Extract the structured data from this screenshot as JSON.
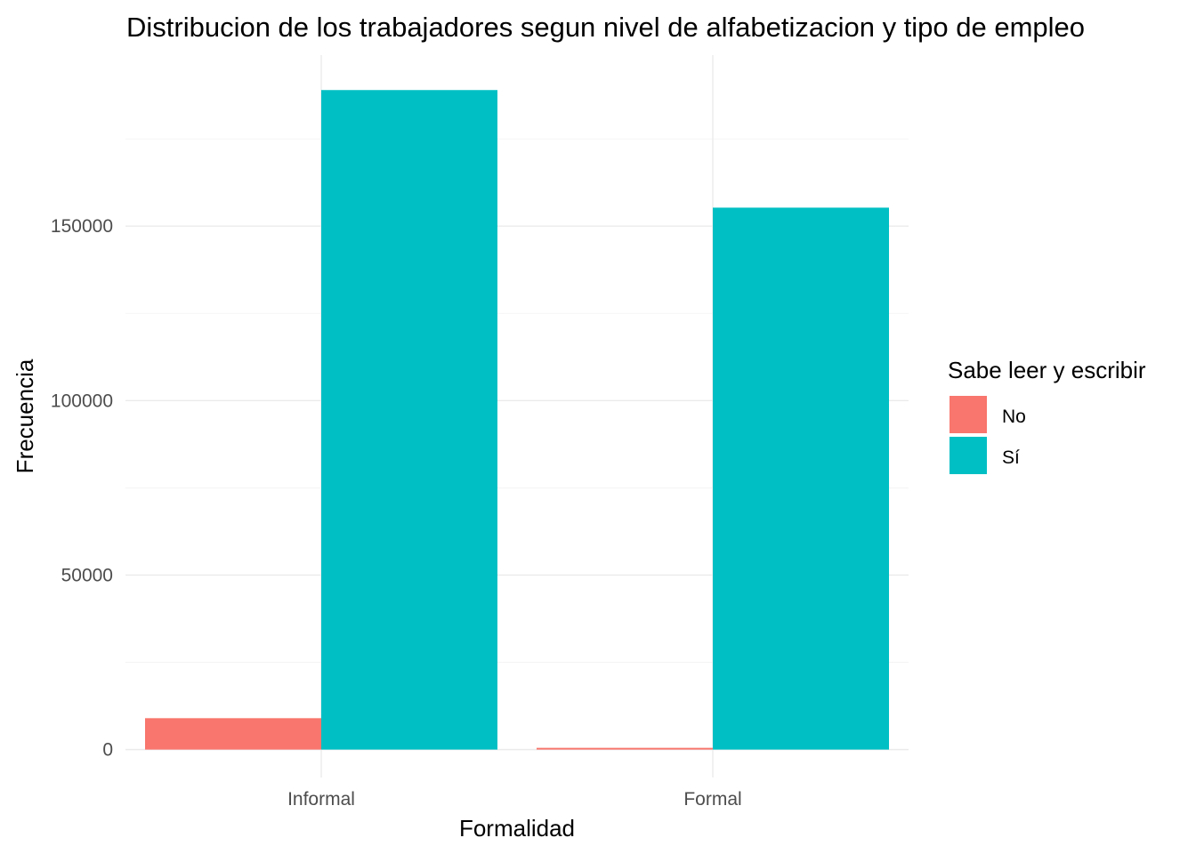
{
  "chart_data": {
    "type": "bar",
    "title": "Distribucion de los trabajadores segun nivel de alfabetizacion y tipo de empleo",
    "xlabel": "Formalidad",
    "ylabel": "Frecuencia",
    "categories": [
      "Informal",
      "Formal"
    ],
    "series": [
      {
        "name": "No",
        "values": [
          9000,
          500
        ]
      },
      {
        "name": "Sí",
        "values": [
          189000,
          155300
        ]
      }
    ],
    "colors": [
      "#F8766D",
      "#00BFC4"
    ],
    "ylim": [
      -8000,
      199000
    ],
    "y_ticks": [
      0,
      50000,
      100000,
      150000
    ],
    "y_tick_labels": [
      "0",
      "50000",
      "100000",
      "150000"
    ],
    "grid": true,
    "legend": {
      "title": "Sabe leer y escribir",
      "position": "right"
    }
  }
}
